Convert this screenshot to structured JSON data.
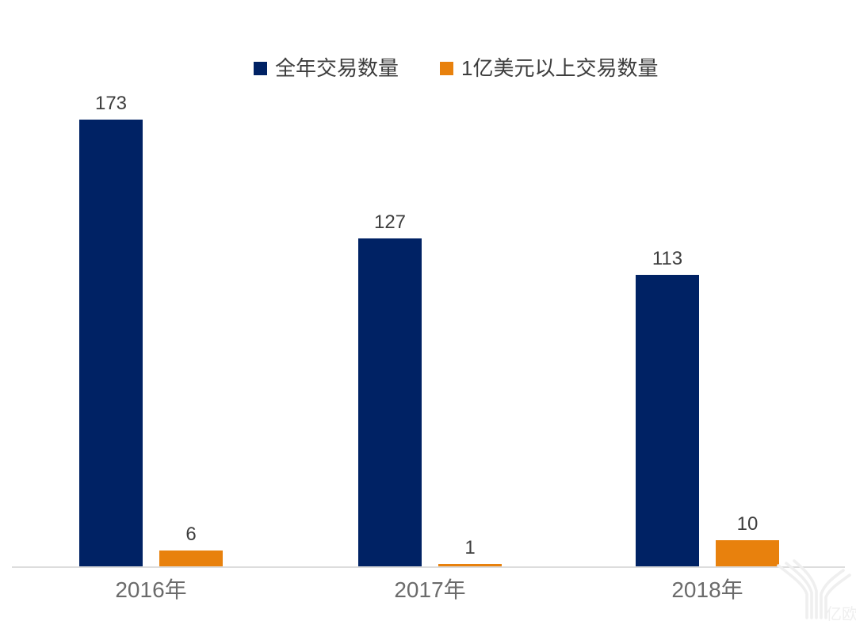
{
  "chart_data": {
    "type": "bar",
    "title": "",
    "xlabel": "",
    "ylabel": "",
    "categories": [
      "2016年",
      "2017年",
      "2018年"
    ],
    "series": [
      {
        "name": "全年交易数量",
        "color": "#002264",
        "values": [
          173,
          127,
          113
        ]
      },
      {
        "name": "1亿美元以上交易数量",
        "color": "#e8810d",
        "values": [
          6,
          1,
          10
        ]
      }
    ],
    "data_labels": [
      [
        "173",
        "127",
        "113"
      ],
      [
        "6",
        "1",
        "10"
      ]
    ],
    "ylim": [
      0,
      173
    ],
    "grid": false,
    "legend_position": "top-center",
    "axis_line_color": "#dddddd"
  },
  "watermark": {
    "text": "亿欧"
  }
}
